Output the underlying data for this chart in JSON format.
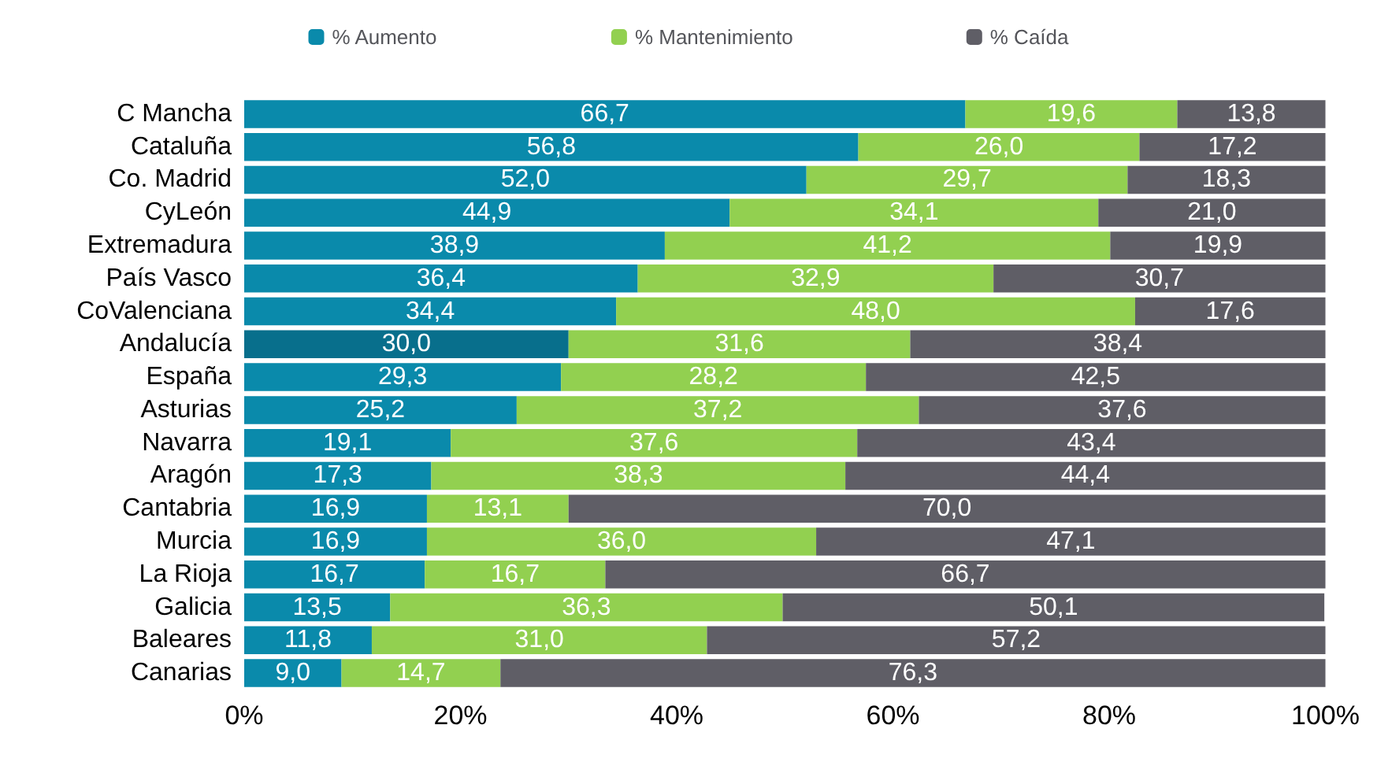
{
  "chart_data": {
    "type": "bar",
    "orientation": "horizontal",
    "stacked": true,
    "legend": "top",
    "grid": false,
    "categories": [
      "C Mancha",
      "Cataluña",
      "Co. Madrid",
      "CyLeón",
      "Extremadura",
      "País Vasco",
      "CoValenciana",
      "Andalucía",
      "España",
      "Asturias",
      "Navarra",
      "Aragón",
      "Cantabria",
      "Murcia",
      "La Rioja",
      "Galicia",
      "Baleares",
      "Canarias"
    ],
    "xlim": [
      0,
      100
    ],
    "xticks": [
      {
        "value": 0,
        "label": "0%"
      },
      {
        "value": 20,
        "label": "20%"
      },
      {
        "value": 40,
        "label": "40%"
      },
      {
        "value": 60,
        "label": "60%"
      },
      {
        "value": 80,
        "label": "80%"
      },
      {
        "value": 100,
        "label": "100%"
      }
    ],
    "series": [
      {
        "name": "% Aumento",
        "color": "#0a8aab",
        "colors": [
          "#0a8aab",
          "#0a8aab",
          "#0a8aab",
          "#0a8aab",
          "#0a8aab",
          "#0a8aab",
          "#0a8aab",
          "#086f8c",
          "#0a8aab",
          "#0a8aab",
          "#0a8aab",
          "#0a8aab",
          "#0a8aab",
          "#0a8aab",
          "#0a8aab",
          "#0a8aab",
          "#0a8aab",
          "#0a8aab"
        ],
        "values": [
          66.7,
          56.8,
          52.0,
          44.9,
          38.9,
          36.4,
          34.4,
          30.0,
          29.3,
          25.2,
          19.1,
          17.3,
          16.9,
          16.9,
          16.7,
          13.5,
          11.8,
          9.0
        ],
        "value_labels": [
          "66,7",
          "56,8",
          "52,0",
          "44,9",
          "38,9",
          "36,4",
          "34,4",
          "30,0",
          "29,3",
          "25,2",
          "19,1",
          "17,3",
          "16,9",
          "16,9",
          "16,7",
          "13,5",
          "11,8",
          "9,0"
        ]
      },
      {
        "name": "% Mantenimiento",
        "color": "#92d050",
        "values": [
          19.6,
          26.0,
          29.7,
          34.1,
          41.2,
          32.9,
          48.0,
          31.6,
          28.2,
          37.2,
          37.6,
          38.3,
          13.1,
          36.0,
          16.7,
          36.3,
          31.0,
          14.7
        ],
        "value_labels": [
          "19,6",
          "26,0",
          "29,7",
          "34,1",
          "41,2",
          "32,9",
          "48,0",
          "31,6",
          "28,2",
          "37,2",
          "37,6",
          "38,3",
          "13,1",
          "36,0",
          "16,7",
          "36,3",
          "31,0",
          "14,7"
        ]
      },
      {
        "name": "% Caída",
        "color": "#5f5e66",
        "values": [
          13.8,
          17.2,
          18.3,
          21.0,
          19.9,
          30.7,
          17.6,
          38.4,
          42.5,
          37.6,
          43.4,
          44.4,
          70.0,
          47.1,
          66.7,
          50.1,
          57.2,
          76.3
        ],
        "value_labels": [
          "13,8",
          "17,2",
          "18,3",
          "21,0",
          "19,9",
          "30,7",
          "17,6",
          "38,4",
          "42,5",
          "37,6",
          "43,4",
          "44,4",
          "70,0",
          "47,1",
          "66,7",
          "50,1",
          "57,2",
          "76,3"
        ]
      }
    ]
  }
}
